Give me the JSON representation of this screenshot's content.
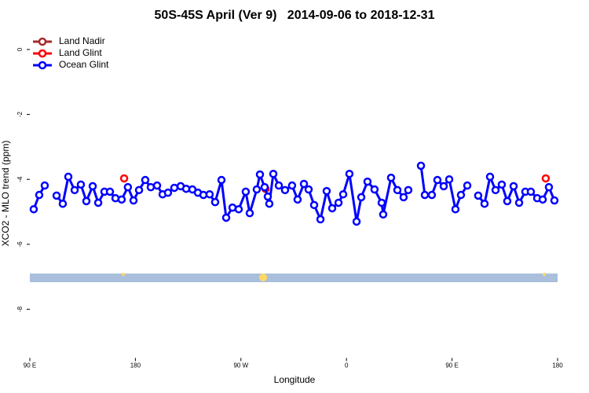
{
  "chart_data": {
    "type": "line",
    "title": "50S-45S April (Ver 9)   2014-09-06 to 2018-12-31",
    "xlabel": "Longitude",
    "ylabel": "XCO2 - MLO trend (ppm)",
    "xlim": [
      90,
      540
    ],
    "ylim": [
      -9.5,
      0.6
    ],
    "xticks": [
      {
        "value": 90,
        "label": "90 E"
      },
      180,
      {
        "value": 270,
        "label": "90 W"
      },
      {
        "value": 360,
        "label": "0"
      },
      {
        "value": 450,
        "label": "90 E"
      },
      {
        "value": 540,
        "label": "180"
      }
    ],
    "yticks": [
      0,
      -2,
      -4,
      -6,
      -8
    ],
    "legend": "top-left",
    "series": [
      {
        "name": "Land Nadir",
        "color": "#a52a2a",
        "lines": true,
        "x": [],
        "values": []
      },
      {
        "name": "Land Glint",
        "color": "#ff0000",
        "lines": false,
        "x": [
          170.4,
          290.9,
          529.9
        ],
        "values": [
          -3.97,
          -4.29,
          -3.97
        ]
      },
      {
        "name": "Ocean Glint",
        "color": "#0000ff",
        "lines": true,
        "x": [
          93.3,
          98.0,
          102.7,
          null,
          112.8,
          118.1,
          122.8,
          128.2,
          133.5,
          138.2,
          143.6,
          148.3,
          153.6,
          158.3,
          163.0,
          168.3,
          173.6,
          178.4,
          183.1,
          188.4,
          193.1,
          198.5,
          203.2,
          207.8,
          213.2,
          218.6,
          223.3,
          228.6,
          233.3,
          238.0,
          243.3,
          248.0,
          253.4,
          257.4,
          262.8,
          268.1,
          274.1,
          277.5,
          283.5,
          286.2,
          290.2,
          292.9,
          294.2,
          297.6,
          302.3,
          307.6,
          313.6,
          318.3,
          323.7,
          327.7,
          332.4,
          337.8,
          343.1,
          347.8,
          353.2,
          357.2,
          362.5,
          368.6,
          372.6,
          377.9,
          383.9,
          390.0,
          391.3,
          398.0,
          403.4,
          408.7,
          412.7,
          null,
          423.5,
          426.8,
          432.8,
          437.5,
          442.9,
          447.6,
          452.9,
          457.6,
          463.0,
          null,
          472.3,
          477.7,
          482.4,
          487.1,
          492.4,
          497.1,
          502.5,
          507.2,
          512.5,
          517.2,
          522.6,
          527.3,
          532.6,
          537.3
        ],
        "values": [
          -4.92,
          -4.48,
          -4.19,
          null,
          -4.5,
          -4.75,
          -3.92,
          -4.33,
          -4.16,
          -4.67,
          -4.21,
          -4.72,
          -4.38,
          -4.38,
          -4.58,
          -4.62,
          -4.24,
          -4.65,
          -4.33,
          -4.02,
          -4.24,
          -4.19,
          -4.46,
          -4.41,
          -4.26,
          -4.21,
          -4.29,
          -4.31,
          -4.41,
          -4.48,
          -4.46,
          -4.7,
          -4.02,
          -5.18,
          -4.87,
          -4.92,
          -4.38,
          -5.04,
          -4.31,
          -3.85,
          -4.24,
          -4.53,
          -4.75,
          -3.83,
          -4.19,
          -4.33,
          -4.19,
          -4.62,
          -4.14,
          -4.31,
          -4.79,
          -5.23,
          -4.36,
          -4.89,
          -4.72,
          -4.46,
          -3.83,
          -5.3,
          -4.55,
          -4.07,
          -4.31,
          -4.72,
          -5.08,
          -3.95,
          -4.33,
          -4.55,
          -4.33,
          null,
          -3.58,
          -4.48,
          -4.48,
          -4.02,
          -4.21,
          -4.0,
          -4.92,
          -4.48,
          -4.19,
          null,
          -4.5,
          -4.75,
          -3.92,
          -4.33,
          -4.16,
          -4.67,
          -4.21,
          -4.72,
          -4.38,
          -4.38,
          -4.58,
          -4.62,
          -4.24,
          -4.65
        ]
      }
    ]
  }
}
